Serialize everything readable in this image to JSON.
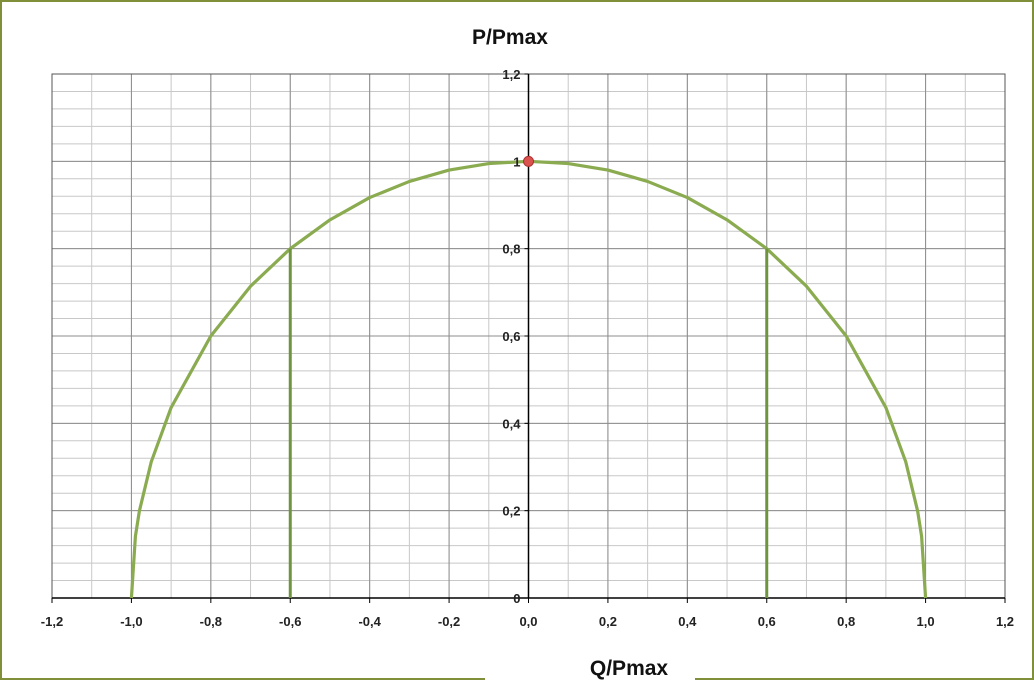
{
  "chart_data": {
    "type": "line",
    "title": "",
    "xlabel": "Q/Pmax",
    "ylabel": "P/Pmax",
    "xlim": [
      -1.2,
      1.2
    ],
    "ylim": [
      0,
      1.2
    ],
    "x_ticks": [
      -1.2,
      -1.0,
      -0.8,
      -0.6,
      -0.4,
      -0.2,
      0.0,
      0.2,
      0.4,
      0.6,
      0.8,
      1.0,
      1.2
    ],
    "x_tick_labels": [
      "-1,2",
      "-1,0",
      "-0,8",
      "-0,6",
      "-0,4",
      "-0,2",
      "0,0",
      "0,2",
      "0,4",
      "0,6",
      "0,8",
      "1,0",
      "1,2"
    ],
    "y_ticks": [
      0,
      0.2,
      0.4,
      0.6,
      0.8,
      1.0,
      1.2
    ],
    "y_tick_labels": [
      "0",
      "0,2",
      "0,4",
      "0,6",
      "0,8",
      "1",
      "1,2"
    ],
    "grid": {
      "major": true,
      "minor": true
    },
    "series": [
      {
        "x": [
          -1.0,
          -0.99,
          -0.98,
          -0.95,
          -0.9,
          -0.8,
          -0.7,
          -0.6,
          -0.5,
          -0.4,
          -0.3,
          -0.2,
          -0.1,
          0.0,
          0.1,
          0.2,
          0.3,
          0.4,
          0.5,
          0.6,
          0.7,
          0.8,
          0.9,
          0.95,
          0.98,
          0.99,
          1.0
        ],
        "y": [
          0.0,
          0.141,
          0.199,
          0.312,
          0.436,
          0.6,
          0.714,
          0.8,
          0.866,
          0.917,
          0.954,
          0.98,
          0.995,
          1.0,
          0.995,
          0.98,
          0.954,
          0.917,
          0.866,
          0.8,
          0.714,
          0.6,
          0.436,
          0.312,
          0.199,
          0.141,
          0.0
        ],
        "color": "#8aab50"
      },
      {
        "x": [
          -0.6,
          -0.6
        ],
        "y": [
          0.0,
          0.8
        ],
        "color": "#6e9440"
      },
      {
        "x": [
          0.6,
          0.6
        ],
        "y": [
          0.0,
          0.8
        ],
        "color": "#6e9440"
      }
    ],
    "markers": [
      {
        "x": 0.0,
        "y": 1.0,
        "color": "#d9534f"
      }
    ]
  },
  "colors": {
    "frame": "#7f8f3a",
    "major_grid": "#8c8c8c",
    "minor_grid": "#c8c8c8",
    "axis": "#000000"
  }
}
